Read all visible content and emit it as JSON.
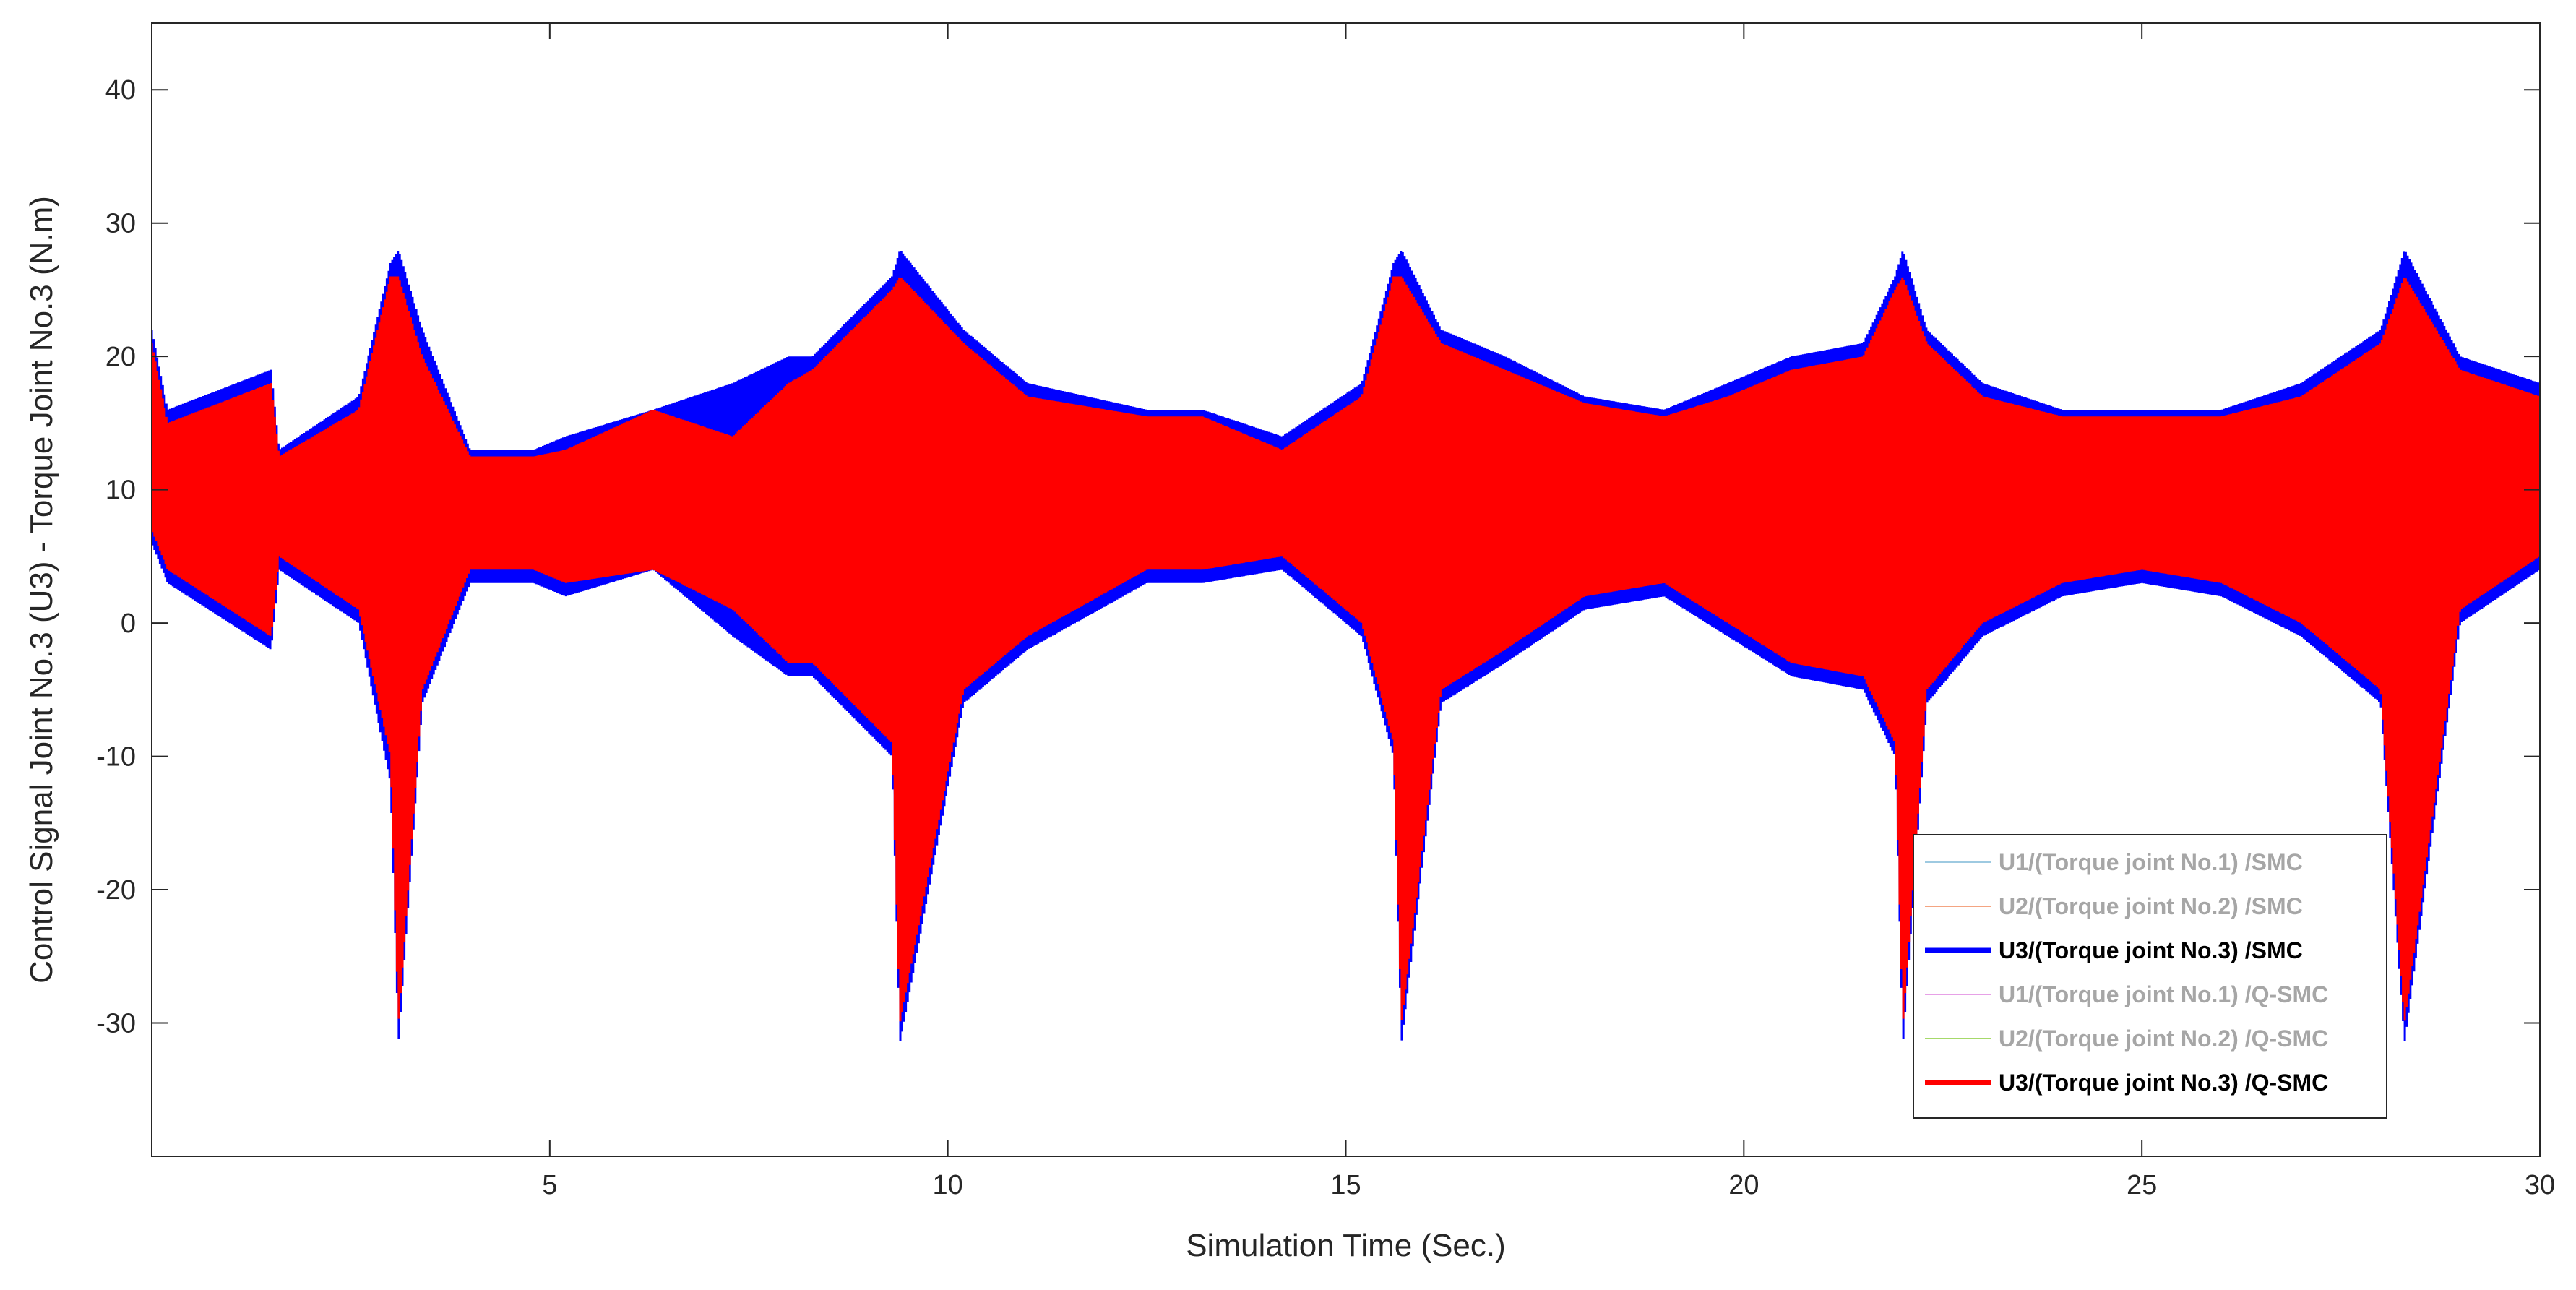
{
  "chart_data": {
    "type": "line",
    "title": "",
    "xlabel": "Simulation Time (Sec.)",
    "ylabel": "Control Signal Joint No.3 (U3) - Torque Joint No.3 (N.m)",
    "xlim": [
      0,
      30
    ],
    "ylim": [
      -40,
      45
    ],
    "xticks": [
      5,
      10,
      15,
      20,
      25,
      30
    ],
    "xtick_labels": [
      "5",
      "10",
      "15",
      "20",
      "25",
      "30"
    ],
    "yticks": [
      40,
      30,
      20,
      10,
      0,
      -10,
      -20,
      -30
    ],
    "ytick_labels": [
      "40",
      "30",
      "20",
      "10",
      "0",
      "-10",
      "-20",
      "-30"
    ],
    "grid": false,
    "legend_position": "bottom-right",
    "center_value": 8.5,
    "period": 6.28,
    "spike_times": [
      3.1,
      9.4,
      15.7,
      22.0,
      28.3
    ],
    "spike_min": -31.5,
    "spike_max": 28,
    "series": [
      {
        "name": "U1/(Torque joint No.1) /SMC",
        "color": "#9ecae1",
        "visible_data": false
      },
      {
        "name": "U2/(Torque joint No.2) /SMC",
        "color": "#f4a582",
        "visible_data": false
      },
      {
        "name": "U3/(Torque joint No.3) /SMC",
        "color": "#0000ff",
        "visible_data": true,
        "envelope_t": [
          0,
          0.2,
          1.5,
          1.6,
          2.6,
          3.0,
          3.1,
          3.4,
          4.0,
          4.8,
          5.2,
          6.3,
          7.3,
          8.0,
          8.3,
          9.3,
          9.4,
          10.2,
          11.0,
          12.5,
          13.2,
          14.2,
          15.2,
          15.6,
          15.7,
          16.2,
          17.0,
          18.0,
          19.0,
          19.8,
          20.6,
          21.5,
          21.9,
          22.0,
          22.3,
          23.0,
          24.0,
          25.0,
          26.0,
          27.0,
          28.0,
          28.3,
          29.0,
          30.0
        ],
        "envelope_upper": [
          22,
          16,
          19,
          13,
          17,
          27,
          28,
          22,
          13,
          13,
          14,
          16,
          18,
          20,
          20,
          26,
          28,
          22,
          18,
          16,
          16,
          14,
          18,
          27,
          28,
          22,
          20,
          17,
          16,
          18,
          20,
          21,
          26,
          28,
          22,
          18,
          16,
          16,
          16,
          18,
          22,
          28,
          20,
          18
        ],
        "envelope_lower": [
          6,
          3,
          -2,
          4,
          0,
          -12,
          -31.5,
          -6,
          3,
          3,
          2,
          4,
          -1,
          -4,
          -4,
          -10,
          -31.5,
          -6,
          -2,
          3,
          3,
          4,
          -1,
          -10,
          -31.5,
          -6,
          -3,
          1,
          2,
          -1,
          -4,
          -5,
          -10,
          -31.5,
          -6,
          -1,
          2,
          3,
          2,
          -1,
          -6,
          -31.5,
          0,
          4
        ]
      },
      {
        "name": "U1/(Torque joint No.1) /Q-SMC",
        "color": "#e7a1e7",
        "visible_data": false
      },
      {
        "name": "U2/(Torque joint No.2) /Q-SMC",
        "color": "#a6d96a",
        "visible_data": false
      },
      {
        "name": "U3/(Torque joint No.3) /Q-SMC",
        "color": "#ff0000",
        "visible_data": true,
        "envelope_t": [
          0,
          0.2,
          1.5,
          1.6,
          2.6,
          3.0,
          3.1,
          3.4,
          4.0,
          4.8,
          5.2,
          6.3,
          7.3,
          8.0,
          8.3,
          9.3,
          9.4,
          10.2,
          11.0,
          12.5,
          13.2,
          14.2,
          15.2,
          15.6,
          15.7,
          16.2,
          17.0,
          18.0,
          19.0,
          19.8,
          20.6,
          21.5,
          21.9,
          22.0,
          22.3,
          23.0,
          24.0,
          25.0,
          26.0,
          27.0,
          28.0,
          28.3,
          29.0,
          30.0
        ],
        "envelope_upper": [
          21,
          15,
          18,
          12.5,
          16,
          26,
          26,
          20,
          12.5,
          12.5,
          13,
          16,
          14,
          18,
          19,
          25,
          26,
          21,
          17,
          15.5,
          15.5,
          13,
          17,
          26,
          26,
          21,
          19,
          16.5,
          15.5,
          17,
          19,
          20,
          25,
          26,
          21,
          17,
          15.5,
          15.5,
          15.5,
          17,
          21,
          26,
          19,
          17
        ],
        "envelope_lower": [
          7,
          4,
          -1,
          5,
          1,
          -10,
          -30,
          -5,
          4,
          4,
          3,
          4,
          1,
          -3,
          -3,
          -9,
          -30,
          -5,
          -1,
          4,
          4,
          5,
          0,
          -9,
          -30,
          -5,
          -2,
          2,
          3,
          0,
          -3,
          -4,
          -9,
          -30,
          -5,
          0,
          3,
          4,
          3,
          0,
          -5,
          -30,
          1,
          5
        ]
      }
    ]
  }
}
